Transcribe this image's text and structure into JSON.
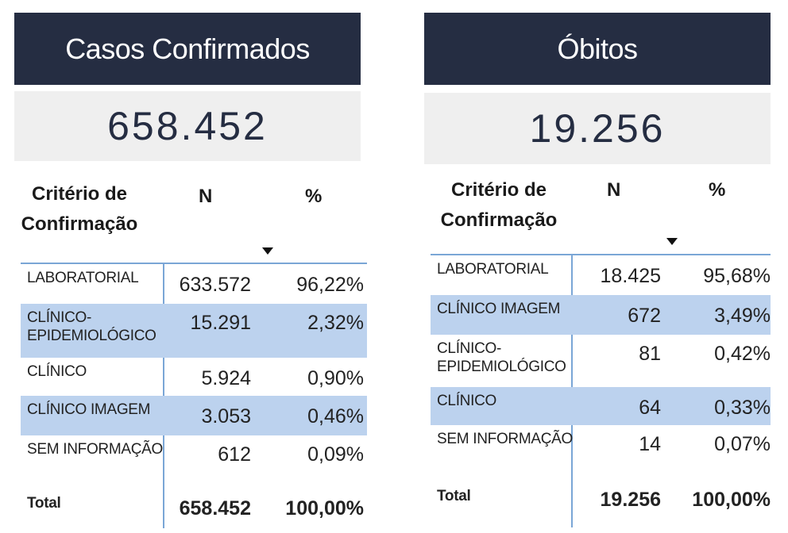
{
  "left": {
    "title": "Casos Confirmados",
    "total_value": "658.452",
    "headers": {
      "criterio": "Critério de Confirmação",
      "n": "N",
      "pct": "%"
    },
    "rows": [
      {
        "label": "LABORATORIAL",
        "n": "633.572",
        "pct": "96,22%"
      },
      {
        "label": "CLÍNICO-EPIDEMIOLÓGICO",
        "n": "15.291",
        "pct": "2,32%"
      },
      {
        "label": "CLÍNICO",
        "n": "5.924",
        "pct": "0,90%"
      },
      {
        "label": "CLÍNICO IMAGEM",
        "n": "3.053",
        "pct": "0,46%"
      },
      {
        "label": "SEM INFORMAÇÃO",
        "n": "612",
        "pct": "0,09%"
      }
    ],
    "total": {
      "label": "Total",
      "n": "658.452",
      "pct": "100,00%"
    }
  },
  "right": {
    "title": "Óbitos",
    "total_value": "19.256",
    "headers": {
      "criterio": "Critério de Confirmação",
      "n": "N",
      "pct": "%"
    },
    "rows": [
      {
        "label": "LABORATORIAL",
        "n": "18.425",
        "pct": "95,68%"
      },
      {
        "label": "CLÍNICO IMAGEM",
        "n": "672",
        "pct": "3,49%"
      },
      {
        "label": "CLÍNICO-EPIDEMIOLÓGICO",
        "n": "81",
        "pct": "0,42%"
      },
      {
        "label": "CLÍNICO",
        "n": "64",
        "pct": "0,33%"
      },
      {
        "label": "SEM INFORMAÇÃO",
        "n": "14",
        "pct": "0,07%"
      }
    ],
    "total": {
      "label": "Total",
      "n": "19.256",
      "pct": "100,00%"
    }
  },
  "colors": {
    "title_bg": "#252d42",
    "kpi_bg": "#efefef",
    "row_highlight": "#bcd2ee",
    "grid_line": "#7aa6d6"
  },
  "icons": {
    "sort": "sort-descending-icon"
  }
}
